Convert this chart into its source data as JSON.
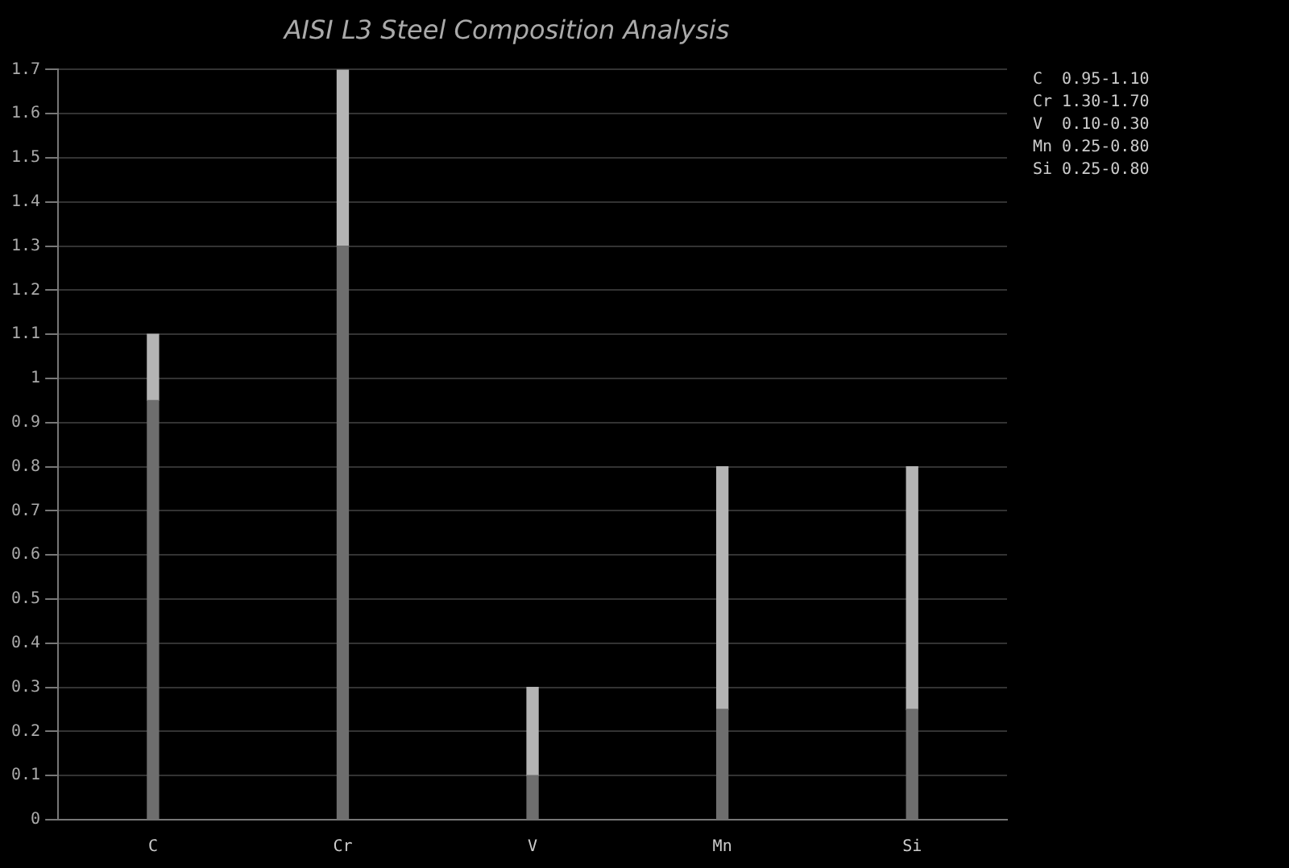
{
  "chart_data": {
    "type": "bar",
    "title": "AISI L3 Steel Composition Analysis",
    "categories": [
      "C",
      "Cr",
      "V",
      "Mn",
      "Si"
    ],
    "stacked": true,
    "series": [
      {
        "color": "#6e6e6e",
        "values": [
          0.95,
          1.3,
          0.1,
          0.25,
          0.25
        ]
      },
      {
        "color": "#b4b4b4",
        "values": [
          0.15,
          0.4,
          0.2,
          0.55,
          0.55
        ]
      }
    ],
    "ylim": [
      0,
      1.7
    ],
    "yticks": [
      0,
      0.1,
      0.2,
      0.3,
      0.4,
      0.5,
      0.6,
      0.7,
      0.8,
      0.9,
      1,
      1.1,
      1.2,
      1.3,
      1.4,
      1.5,
      1.6,
      1.7
    ],
    "grid": "y",
    "annotations": [
      "C  0.95-1.10",
      "Cr 1.30-1.70",
      "V  0.10-0.30",
      "Mn 0.25-0.80",
      "Si 0.25-0.80"
    ]
  }
}
